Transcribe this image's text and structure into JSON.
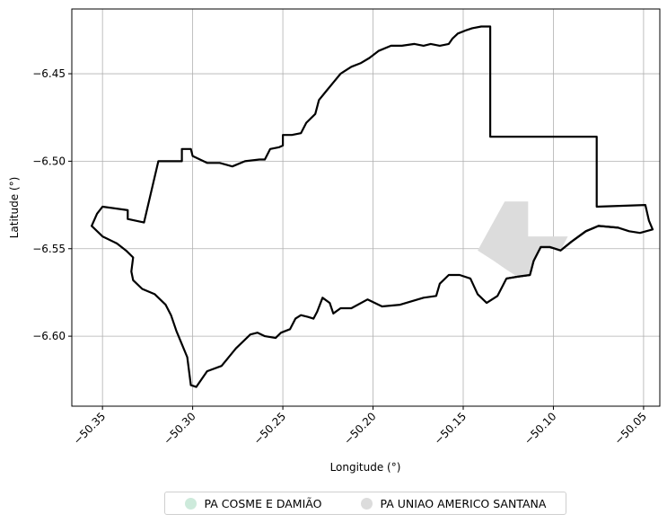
{
  "chart_data": {
    "type": "map",
    "xlabel": "Longitude (°)",
    "ylabel": "Latitude (°)",
    "xlim": [
      -50.367,
      -50.041
    ],
    "ylim": [
      -6.64,
      -6.413
    ],
    "x_ticks": [
      -50.35,
      -50.3,
      -50.25,
      -50.2,
      -50.15,
      -50.1,
      -50.05
    ],
    "x_tick_labels": [
      "−50.35",
      "−50.30",
      "−50.25",
      "−50.20",
      "−50.15",
      "−50.10",
      "−50.05"
    ],
    "y_ticks": [
      -6.45,
      -6.5,
      -6.55,
      -6.6
    ],
    "y_tick_labels": [
      "−6.45",
      "−6.50",
      "−6.55",
      "−6.60"
    ],
    "grid": true,
    "legend_position": "bottom-center",
    "series": [
      {
        "name": "PA COSME E DAMIÃO",
        "color": "#cdeadb",
        "boundary": [
          [
            -50.135,
            -6.423
          ],
          [
            -50.135,
            -6.486
          ],
          [
            -50.076,
            -6.486
          ],
          [
            -50.076,
            -6.526
          ],
          [
            -50.049,
            -6.525
          ],
          [
            -50.047,
            -6.534
          ],
          [
            -50.045,
            -6.539
          ],
          [
            -50.052,
            -6.541
          ],
          [
            -50.058,
            -6.54
          ],
          [
            -50.064,
            -6.538
          ],
          [
            -50.075,
            -6.537
          ],
          [
            -50.082,
            -6.54
          ],
          [
            -50.09,
            -6.546
          ],
          [
            -50.096,
            -6.551
          ],
          [
            -50.102,
            -6.549
          ],
          [
            -50.107,
            -6.549
          ],
          [
            -50.111,
            -6.557
          ],
          [
            -50.113,
            -6.565
          ],
          [
            -50.12,
            -6.566
          ],
          [
            -50.126,
            -6.567
          ],
          [
            -50.131,
            -6.577
          ],
          [
            -50.137,
            -6.581
          ],
          [
            -50.142,
            -6.576
          ],
          [
            -50.146,
            -6.567
          ],
          [
            -50.152,
            -6.565
          ],
          [
            -50.158,
            -6.565
          ],
          [
            -50.163,
            -6.57
          ],
          [
            -50.165,
            -6.577
          ],
          [
            -50.172,
            -6.578
          ],
          [
            -50.185,
            -6.582
          ],
          [
            -50.195,
            -6.583
          ],
          [
            -50.203,
            -6.579
          ],
          [
            -50.212,
            -6.584
          ],
          [
            -50.218,
            -6.584
          ],
          [
            -50.222,
            -6.587
          ],
          [
            -50.224,
            -6.581
          ],
          [
            -50.228,
            -6.578
          ],
          [
            -50.231,
            -6.586
          ],
          [
            -50.233,
            -6.59
          ],
          [
            -50.236,
            -6.589
          ],
          [
            -50.24,
            -6.588
          ],
          [
            -50.243,
            -6.59
          ],
          [
            -50.246,
            -6.596
          ],
          [
            -50.251,
            -6.598
          ],
          [
            -50.254,
            -6.601
          ],
          [
            -50.26,
            -6.6
          ],
          [
            -50.264,
            -6.598
          ],
          [
            -50.268,
            -6.599
          ],
          [
            -50.276,
            -6.607
          ],
          [
            -50.284,
            -6.617
          ],
          [
            -50.292,
            -6.62
          ],
          [
            -50.298,
            -6.629
          ],
          [
            -50.301,
            -6.628
          ],
          [
            -50.303,
            -6.612
          ],
          [
            -50.309,
            -6.597
          ],
          [
            -50.312,
            -6.588
          ],
          [
            -50.315,
            -6.582
          ],
          [
            -50.321,
            -6.576
          ],
          [
            -50.328,
            -6.573
          ],
          [
            -50.333,
            -6.568
          ],
          [
            -50.334,
            -6.563
          ],
          [
            -50.333,
            -6.555
          ],
          [
            -50.337,
            -6.551
          ],
          [
            -50.342,
            -6.547
          ],
          [
            -50.35,
            -6.543
          ],
          [
            -50.356,
            -6.537
          ],
          [
            -50.353,
            -6.53
          ],
          [
            -50.35,
            -6.526
          ],
          [
            -50.336,
            -6.528
          ],
          [
            -50.336,
            -6.533
          ],
          [
            -50.327,
            -6.535
          ],
          [
            -50.319,
            -6.5
          ],
          [
            -50.306,
            -6.5
          ],
          [
            -50.306,
            -6.493
          ],
          [
            -50.301,
            -6.493
          ],
          [
            -50.3,
            -6.497
          ],
          [
            -50.292,
            -6.501
          ],
          [
            -50.285,
            -6.501
          ],
          [
            -50.278,
            -6.503
          ],
          [
            -50.271,
            -6.5
          ],
          [
            -50.263,
            -6.499
          ],
          [
            -50.26,
            -6.499
          ],
          [
            -50.257,
            -6.493
          ],
          [
            -50.252,
            -6.492
          ],
          [
            -50.25,
            -6.491
          ],
          [
            -50.25,
            -6.485
          ],
          [
            -50.245,
            -6.485
          ],
          [
            -50.24,
            -6.484
          ],
          [
            -50.237,
            -6.478
          ],
          [
            -50.232,
            -6.473
          ],
          [
            -50.23,
            -6.465
          ],
          [
            -50.226,
            -6.46
          ],
          [
            -50.222,
            -6.455
          ],
          [
            -50.218,
            -6.45
          ],
          [
            -50.212,
            -6.446
          ],
          [
            -50.207,
            -6.444
          ],
          [
            -50.202,
            -6.441
          ],
          [
            -50.197,
            -6.437
          ],
          [
            -50.19,
            -6.434
          ],
          [
            -50.184,
            -6.434
          ],
          [
            -50.177,
            -6.433
          ],
          [
            -50.172,
            -6.434
          ],
          [
            -50.168,
            -6.433
          ],
          [
            -50.163,
            -6.434
          ],
          [
            -50.158,
            -6.433
          ],
          [
            -50.156,
            -6.43
          ],
          [
            -50.153,
            -6.427
          ],
          [
            -50.148,
            -6.425
          ],
          [
            -50.145,
            -6.424
          ],
          [
            -50.14,
            -6.423
          ],
          [
            -50.135,
            -6.423
          ]
        ]
      },
      {
        "name": "PA UNIAO AMERICO SANTANA",
        "color": "#dcdcdc",
        "boundary": [
          [
            -50.127,
            -6.523
          ],
          [
            -50.114,
            -6.523
          ],
          [
            -50.114,
            -6.543
          ],
          [
            -50.092,
            -6.543
          ],
          [
            -50.096,
            -6.551
          ],
          [
            -50.102,
            -6.549
          ],
          [
            -50.107,
            -6.549
          ],
          [
            -50.111,
            -6.557
          ],
          [
            -50.113,
            -6.565
          ],
          [
            -50.12,
            -6.566
          ],
          [
            -50.126,
            -6.562
          ],
          [
            -50.133,
            -6.557
          ],
          [
            -50.142,
            -6.551
          ],
          [
            -50.127,
            -6.523
          ]
        ]
      }
    ]
  }
}
